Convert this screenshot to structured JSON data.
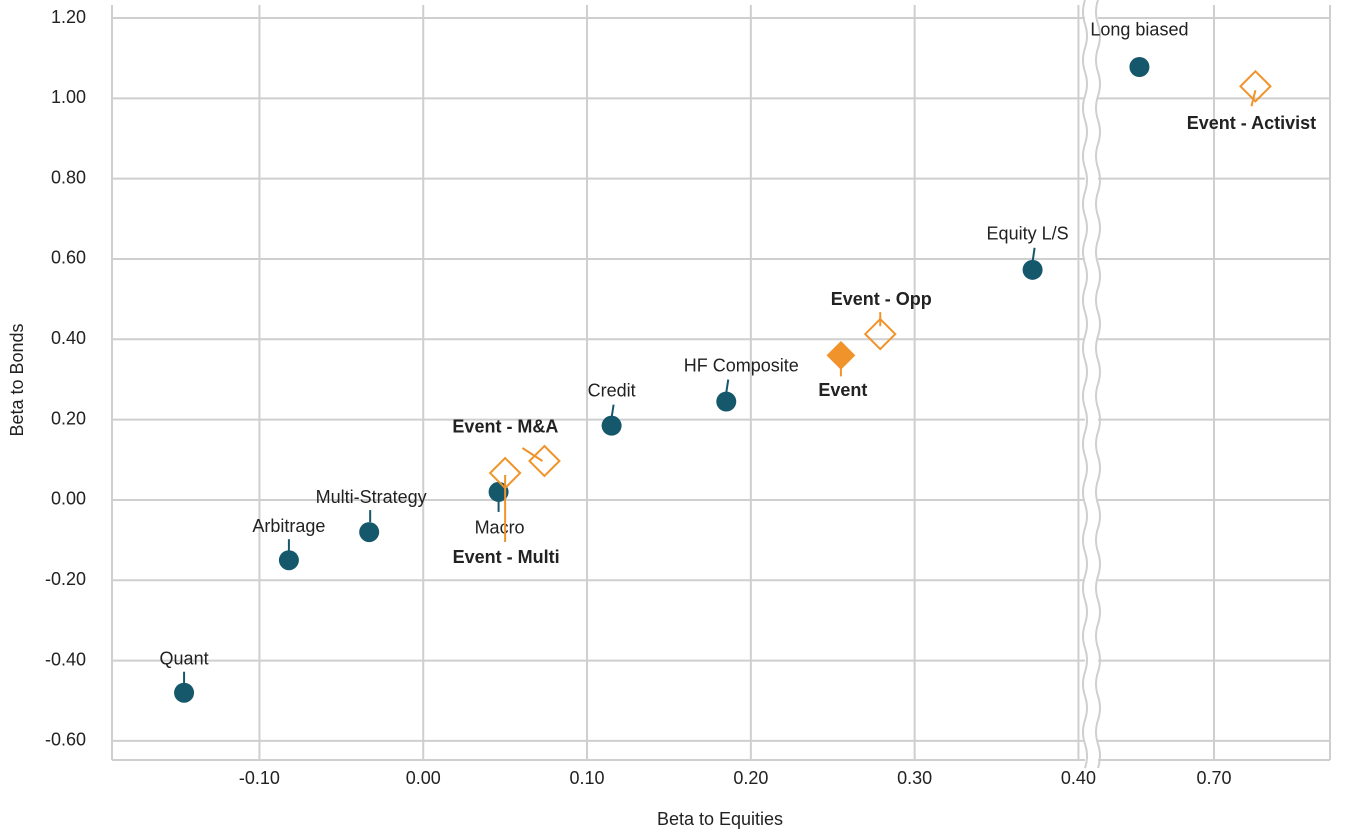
{
  "chart_data": {
    "type": "scatter",
    "x_label": "Beta to Equities",
    "y_label": "Beta to Bonds",
    "x_segments": [
      {
        "xlim": [
          -0.19,
          0.404
        ],
        "xticks": [
          {
            "value": -0.1,
            "label": "-0.10"
          },
          {
            "value": 0,
            "label": "0.00"
          },
          {
            "value": 0.1,
            "label": "0.10"
          },
          {
            "value": 0.2,
            "label": "0.20"
          },
          {
            "value": 0.3,
            "label": "0.30"
          },
          {
            "value": 0.4,
            "label": "0.40"
          }
        ]
      },
      {
        "xlim": [
          0.63,
          0.77
        ],
        "xticks": [
          {
            "value": 0.7,
            "label": "0.70"
          }
        ]
      }
    ],
    "ylim": [
      -0.64,
      1.2
    ],
    "yticks": [
      {
        "value": -0.6,
        "label": "-0.60"
      },
      {
        "value": -0.4,
        "label": "-0.40"
      },
      {
        "value": -0.2,
        "label": "-0.20"
      },
      {
        "value": 0,
        "label": "0.00"
      },
      {
        "value": 0.2,
        "label": "0.20"
      },
      {
        "value": 0.4,
        "label": "0.40"
      },
      {
        "value": 0.6,
        "label": "0.60"
      },
      {
        "value": 0.8,
        "label": "0.80"
      },
      {
        "value": 1,
        "label": "1.00"
      },
      {
        "value": 1.2,
        "label": "1.20"
      }
    ],
    "grid": true,
    "points": [
      {
        "label": "Quant",
        "x": -0.146,
        "y": -0.48,
        "marker": "circle",
        "color": "#16586b",
        "bold": false
      },
      {
        "label": "Arbitrage",
        "x": -0.082,
        "y": -0.15,
        "marker": "circle",
        "color": "#16586b",
        "bold": false
      },
      {
        "label": "Multi-Strategy",
        "x": -0.033,
        "y": -0.08,
        "marker": "circle",
        "color": "#16586b",
        "bold": false
      },
      {
        "label": "Macro",
        "x": 0.046,
        "y": 0.02,
        "marker": "circle",
        "color": "#16586b",
        "bold": false
      },
      {
        "label": "Credit",
        "x": 0.115,
        "y": 0.185,
        "marker": "circle",
        "color": "#16586b",
        "bold": false
      },
      {
        "label": "HF Composite",
        "x": 0.185,
        "y": 0.245,
        "marker": "circle",
        "color": "#16586b",
        "bold": false
      },
      {
        "label": "Equity L/S",
        "x": 0.372,
        "y": 0.573,
        "marker": "circle",
        "color": "#16586b",
        "bold": false
      },
      {
        "label": "Long biased",
        "x": 0.655,
        "y": 1.078,
        "marker": "circle",
        "color": "#16586b",
        "bold": false
      },
      {
        "label": "Event",
        "x": 0.255,
        "y": 0.36,
        "marker": "diamond",
        "color": "#f0932b",
        "bold": true
      },
      {
        "label": "Event - Opp",
        "x": 0.279,
        "y": 0.413,
        "marker": "diamond-open",
        "color": "#f0932b",
        "bold": true
      },
      {
        "label": "Event - M&A",
        "x": 0.074,
        "y": 0.097,
        "marker": "diamond-open",
        "color": "#f0932b",
        "bold": true
      },
      {
        "label": "Event - Multi",
        "x": 0.05,
        "y": 0.067,
        "marker": "diamond-open",
        "color": "#f0932b",
        "bold": true
      },
      {
        "label": "Event - Activist",
        "x": 0.725,
        "y": 1.03,
        "marker": "diamond-open",
        "color": "#f0932b",
        "bold": true
      }
    ]
  }
}
